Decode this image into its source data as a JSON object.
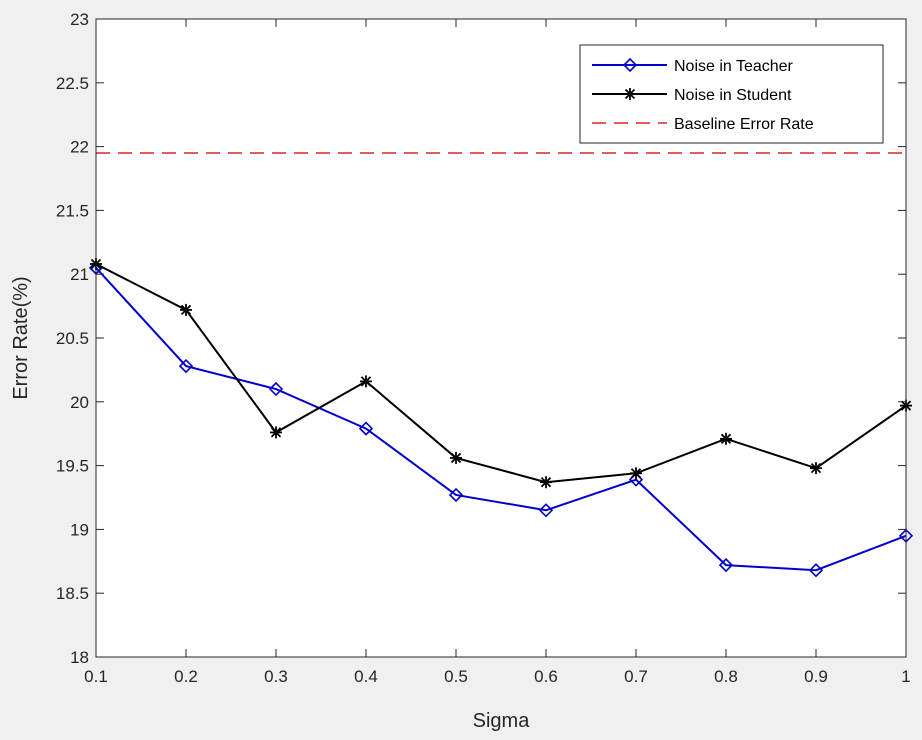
{
  "chart_data": {
    "type": "line",
    "title": "",
    "xlabel": "Sigma",
    "ylabel": "Error Rate(%)",
    "xlim": [
      0.1,
      1
    ],
    "ylim": [
      18,
      23
    ],
    "x": [
      0.1,
      0.2,
      0.3,
      0.4,
      0.5,
      0.6,
      0.7,
      0.8,
      0.9,
      1
    ],
    "x_ticks": [
      "0.1",
      "0.2",
      "0.3",
      "0.4",
      "0.5",
      "0.6",
      "0.7",
      "0.8",
      "0.9",
      "1"
    ],
    "y_ticks": [
      "18",
      "18.5",
      "19",
      "19.5",
      "20",
      "20.5",
      "21",
      "21.5",
      "22",
      "22.5",
      "23"
    ],
    "grid": false,
    "legend_position": "top-right",
    "series": [
      {
        "name": "Noise in Teacher",
        "color": "#0000cc",
        "marker": "diamond",
        "values": [
          21.05,
          20.28,
          20.1,
          19.79,
          19.27,
          19.15,
          19.39,
          18.72,
          18.68,
          18.95
        ]
      },
      {
        "name": "Noise in Student",
        "color": "#000000",
        "marker": "asterisk",
        "values": [
          21.08,
          20.72,
          19.76,
          20.16,
          19.56,
          19.37,
          19.44,
          19.71,
          19.48,
          19.97
        ]
      }
    ],
    "reference_lines": [
      {
        "name": "Baseline Error Rate",
        "color": "#d9262b",
        "style": "dashed",
        "y": 21.95
      }
    ]
  }
}
